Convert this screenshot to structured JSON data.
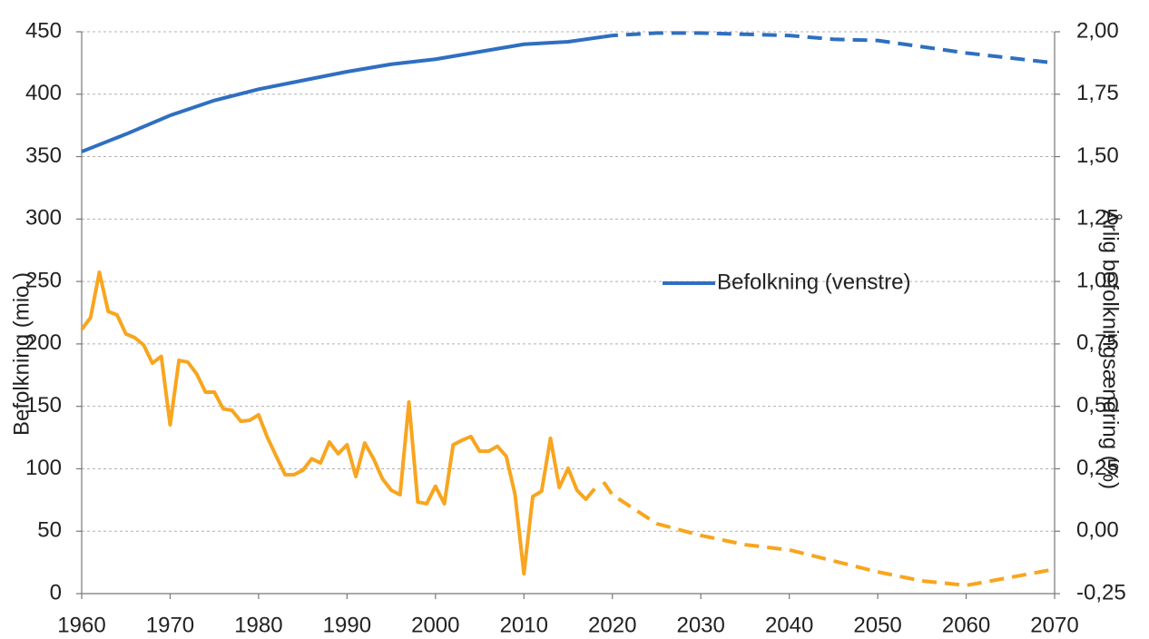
{
  "chart_data": {
    "type": "line",
    "ylabel": "Befolkning (mio.)",
    "y2label": "Årlig befolkningsændring (%)",
    "xlim": [
      1960,
      2070
    ],
    "xticks": [
      1960,
      1970,
      1980,
      1990,
      2000,
      2010,
      2020,
      2030,
      2040,
      2050,
      2060,
      2070
    ],
    "ylim": [
      0,
      450
    ],
    "yticks": [
      0,
      50,
      100,
      150,
      200,
      250,
      300,
      350,
      400,
      450
    ],
    "y2lim": [
      -0.25,
      2.0
    ],
    "y2ticks": [
      {
        "value": -0.25,
        "label": "-0,25"
      },
      {
        "value": 0,
        "label": "0,00"
      },
      {
        "value": 0.25,
        "label": "0,25"
      },
      {
        "value": 0.5,
        "label": "0,50"
      },
      {
        "value": 0.75,
        "label": "0,75"
      },
      {
        "value": 1.0,
        "label": "1,00"
      },
      {
        "value": 1.25,
        "label": "1,25"
      },
      {
        "value": 1.5,
        "label": "1,50"
      },
      {
        "value": 1.75,
        "label": "1,75"
      },
      {
        "value": 2.0,
        "label": "2,00"
      }
    ],
    "grid": true,
    "series": [
      {
        "name": "Befolkning (venstre)",
        "color": "#2f6fc0",
        "dash": false,
        "x": [
          1960,
          1965,
          1970,
          1975,
          1980,
          1985,
          1990,
          1995,
          2000,
          2005,
          2010,
          2015,
          2019
        ],
        "values": [
          354,
          368,
          383,
          395,
          404,
          411,
          418,
          424,
          428,
          434,
          440,
          442,
          446
        ]
      },
      {
        "color": "#2f6fc0",
        "dash": true,
        "x": [
          2019,
          2020,
          2025,
          2030,
          2035,
          2040,
          2045,
          2050,
          2055,
          2060,
          2065,
          2070
        ],
        "values": [
          446,
          447,
          449,
          449,
          448,
          447,
          444,
          443,
          438,
          433,
          429,
          425
        ]
      },
      {
        "color": "#f8a51f",
        "dash": false,
        "axis": "y2",
        "x": [
          1960,
          1961,
          1962,
          1963,
          1964,
          1965,
          1966,
          1967,
          1968,
          1969,
          1970,
          1971,
          1972,
          1973,
          1974,
          1975,
          1976,
          1977,
          1978,
          1979,
          1980,
          1981,
          1982,
          1983,
          1984,
          1985,
          1986,
          1987,
          1988,
          1989,
          1990,
          1991,
          1992,
          1993,
          1994,
          1995,
          1996,
          1997,
          1998,
          1999,
          2000,
          2001,
          2002,
          2003,
          2004,
          2005,
          2006,
          2007,
          2008,
          2009,
          2010,
          2011,
          2012,
          2013,
          2014,
          2015,
          2016,
          2017,
          2018
        ],
        "values": [
          0.808,
          0.855,
          1.037,
          0.88,
          0.866,
          0.79,
          0.775,
          0.746,
          0.673,
          0.7,
          0.426,
          0.684,
          0.677,
          0.63,
          0.557,
          0.557,
          0.49,
          0.484,
          0.44,
          0.444,
          0.466,
          0.375,
          0.3,
          0.226,
          0.226,
          0.244,
          0.29,
          0.273,
          0.357,
          0.31,
          0.346,
          0.219,
          0.353,
          0.29,
          0.21,
          0.164,
          0.146,
          0.517,
          0.117,
          0.11,
          0.18,
          0.11,
          0.346,
          0.364,
          0.379,
          0.32,
          0.32,
          0.34,
          0.3,
          0.146,
          -0.17,
          0.139,
          0.16,
          0.372,
          0.175,
          0.252,
          0.164,
          0.128,
          0.17
        ]
      },
      {
        "color": "#f8a51f",
        "dash": true,
        "axis": "y2",
        "x": [
          2019,
          2020,
          2025,
          2030,
          2035,
          2040,
          2045,
          2050,
          2055,
          2060,
          2065,
          2070
        ],
        "values": [
          0.197,
          0.146,
          0.03,
          -0.017,
          -0.054,
          -0.075,
          -0.119,
          -0.163,
          -0.199,
          -0.217,
          -0.185,
          -0.152
        ]
      }
    ]
  }
}
